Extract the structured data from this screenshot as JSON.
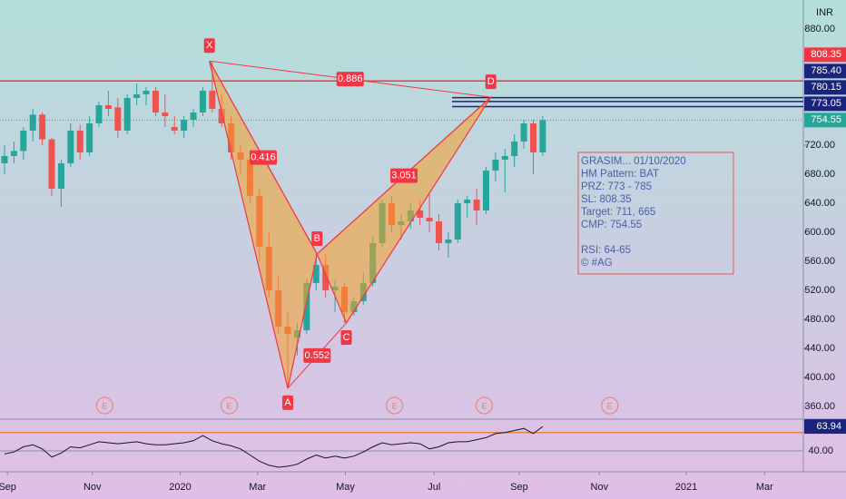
{
  "chart_data": {
    "type": "candlestick",
    "currency": "INR",
    "ylim": [
      342.4,
      920
    ],
    "yticks": [
      {
        "value": 880,
        "label": "880.00"
      },
      {
        "value": 720,
        "label": "720.00"
      },
      {
        "value": 680,
        "label": "680.00"
      },
      {
        "value": 640,
        "label": "640.00"
      },
      {
        "value": 600,
        "label": "600.00"
      },
      {
        "value": 560,
        "label": "560.00"
      },
      {
        "value": 520,
        "label": "520.00"
      },
      {
        "value": 480,
        "label": "480.00"
      },
      {
        "value": 440,
        "label": "440.00"
      },
      {
        "value": 400,
        "label": "400.00"
      },
      {
        "value": 360,
        "label": "360.00"
      }
    ],
    "xlim": [
      -0.48,
      84.6
    ],
    "xticks": [
      {
        "value": 0.3,
        "label": "Sep"
      },
      {
        "value": 9.3,
        "label": "Nov"
      },
      {
        "value": 18.6,
        "label": "2020"
      },
      {
        "value": 26.8,
        "label": "Mar"
      },
      {
        "value": 36.1,
        "label": "May"
      },
      {
        "value": 45.5,
        "label": "Jul"
      },
      {
        "value": 54.5,
        "label": "Sep"
      },
      {
        "value": 63,
        "label": "Nov"
      },
      {
        "value": 72.2,
        "label": "2021"
      },
      {
        "value": 80.5,
        "label": "Mar"
      }
    ],
    "up_color": "#26a69a",
    "down_color": "#ef5350",
    "open": [
      695,
      705,
      712,
      740,
      762,
      728,
      660,
      695,
      740,
      710,
      750,
      775,
      772,
      740,
      785,
      790,
      795,
      765,
      745,
      740,
      755,
      765,
      795,
      770,
      750,
      710,
      700,
      650,
      580,
      520,
      470,
      455,
      465,
      530,
      555,
      520,
      525,
      490,
      505,
      530,
      585,
      640,
      610,
      615,
      630,
      620,
      615,
      585,
      590,
      640,
      645,
      630,
      685,
      700,
      705,
      725,
      750,
      710
    ],
    "high": [
      720,
      725,
      745,
      770,
      765,
      730,
      700,
      750,
      748,
      760,
      780,
      795,
      785,
      790,
      805,
      800,
      800,
      790,
      760,
      760,
      770,
      800,
      835,
      790,
      760,
      720,
      705,
      660,
      600,
      540,
      490,
      475,
      535,
      570,
      570,
      535,
      530,
      510,
      545,
      595,
      645,
      650,
      625,
      640,
      645,
      655,
      625,
      600,
      645,
      650,
      660,
      690,
      710,
      715,
      735,
      755,
      755,
      760
    ],
    "low": [
      680,
      695,
      700,
      725,
      720,
      650,
      635,
      690,
      700,
      705,
      745,
      760,
      730,
      735,
      775,
      775,
      760,
      745,
      735,
      730,
      745,
      760,
      765,
      745,
      700,
      680,
      640,
      560,
      510,
      460,
      385,
      430,
      460,
      520,
      510,
      490,
      475,
      485,
      500,
      525,
      580,
      600,
      590,
      605,
      610,
      600,
      575,
      565,
      585,
      620,
      610,
      625,
      670,
      655,
      690,
      715,
      680,
      705
    ],
    "close": [
      705,
      712,
      740,
      762,
      728,
      660,
      695,
      740,
      710,
      750,
      775,
      770,
      740,
      785,
      790,
      795,
      765,
      760,
      740,
      755,
      765,
      795,
      770,
      750,
      710,
      700,
      650,
      580,
      520,
      470,
      460,
      465,
      530,
      555,
      520,
      525,
      490,
      505,
      530,
      585,
      640,
      610,
      615,
      630,
      620,
      615,
      585,
      590,
      640,
      645,
      630,
      685,
      700,
      705,
      725,
      750,
      710,
      754.55
    ],
    "price_lines": [
      {
        "value": 808.35,
        "color": "#f23645"
      },
      {
        "value": 785.4,
        "label": "785.40",
        "color": "#1a237e"
      },
      {
        "value": 780.15,
        "color": "#1a237e"
      },
      {
        "value": 773.05,
        "color": "#1a237e"
      },
      {
        "value": 754.55,
        "color": "#26a69a"
      }
    ],
    "pattern": {
      "points": [
        {
          "label": "X",
          "x": 21.7,
          "y": 836
        },
        {
          "label": "A",
          "x": 30,
          "y": 385
        },
        {
          "label": "B",
          "x": 33.1,
          "y": 570
        },
        {
          "label": "C",
          "x": 36.2,
          "y": 475
        },
        {
          "label": "D",
          "x": 51.5,
          "y": 786
        }
      ],
      "ratios": [
        0.886,
        0.416,
        0.552,
        3.051
      ]
    },
    "earnings": {
      "label": "E",
      "x": [
        10.6,
        23.8,
        41.3,
        50.8,
        64.1
      ]
    },
    "note": {
      "lines": [
        "GRASIM... 01/10/2020",
        "HM Pattern: BAT",
        "PRZ: 773 - 785",
        "SL: 808.35",
        "Target: 711, 665",
        "CMP: 754.55"
      ],
      "footer": [
        "RSI: 64-65",
        "© #AG"
      ]
    },
    "rsi": {
      "ylim": [
        19.6,
        71.1
      ],
      "yticks": [
        {
          "value": 40,
          "label": "40.00"
        }
      ],
      "level": 58,
      "color": "#131722",
      "level_color": "#e8792b",
      "values": [
        37,
        39,
        44,
        46,
        42,
        34,
        38,
        44,
        43,
        46,
        49,
        48,
        47,
        48,
        49,
        47,
        46,
        46,
        47,
        48,
        50,
        55,
        50,
        47,
        45,
        42,
        36,
        30,
        26,
        24,
        25,
        27,
        32,
        36,
        33,
        35,
        33,
        35,
        39,
        44,
        48,
        46,
        47,
        48,
        47,
        42,
        44,
        48,
        49,
        49,
        51,
        53,
        57,
        58,
        60,
        62,
        57,
        63.94
      ]
    }
  }
}
